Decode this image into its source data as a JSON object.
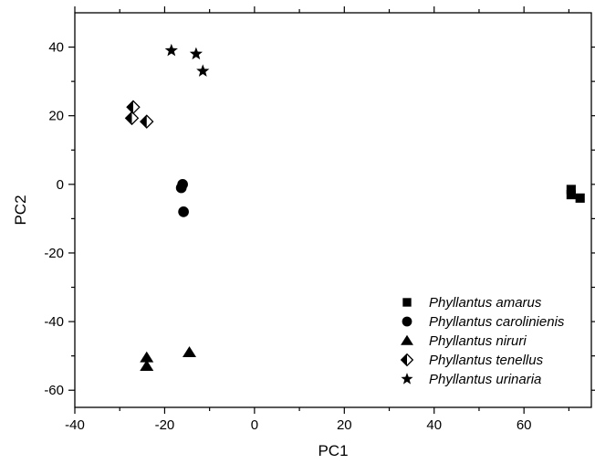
{
  "chart_data": {
    "type": "scatter",
    "xlabel": "PC1",
    "ylabel": "PC2",
    "xlim": [
      -40,
      75
    ],
    "ylim": [
      -65,
      50
    ],
    "xticks": [
      -40,
      -20,
      0,
      20,
      40,
      60
    ],
    "yticks": [
      -60,
      -40,
      -20,
      0,
      20,
      40
    ],
    "grid": false,
    "legend_position": "bottom-right",
    "marker_color": "#000000",
    "series": [
      {
        "name": "Phyllantus amarus",
        "marker": "square",
        "points": [
          [
            70.5,
            -1.5
          ],
          [
            70.5,
            -3
          ],
          [
            72.5,
            -4
          ]
        ]
      },
      {
        "name": "Phyllantus carolinienis",
        "marker": "circle",
        "points": [
          [
            -16,
            0
          ],
          [
            -16.3,
            -1
          ],
          [
            -15.8,
            -8
          ]
        ]
      },
      {
        "name": "Phyllantus niruri",
        "marker": "triangle",
        "points": [
          [
            -24,
            -50.5
          ],
          [
            -24,
            -53
          ],
          [
            -14.5,
            -49
          ]
        ]
      },
      {
        "name": "Phyllantus tenellus",
        "marker": "half-diamond",
        "points": [
          [
            -27,
            22.5
          ],
          [
            -27.3,
            19.3
          ],
          [
            -24,
            18.3
          ]
        ]
      },
      {
        "name": "Phyllantus urinaria",
        "marker": "star",
        "points": [
          [
            -18.5,
            39
          ],
          [
            -13,
            38
          ],
          [
            -11.5,
            33
          ]
        ]
      }
    ]
  }
}
